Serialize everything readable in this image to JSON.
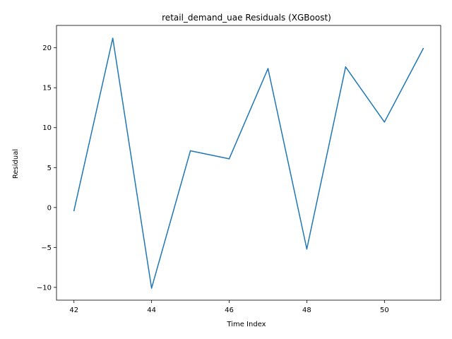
{
  "chart_data": {
    "type": "line",
    "title": "retail_demand_uae Residuals (XGBoost)",
    "xlabel": "Time Index",
    "ylabel": "Residual",
    "xlim": [
      41.55,
      51.45
    ],
    "ylim": [
      -11.6,
      22.8
    ],
    "xticks": [
      42,
      44,
      46,
      48,
      50
    ],
    "yticks": [
      -10,
      -5,
      0,
      5,
      10,
      15,
      20
    ],
    "grid": false,
    "series": [
      {
        "color": "#1f77b4",
        "x": [
          42,
          43,
          44,
          45,
          46,
          47,
          48,
          49,
          50,
          51
        ],
        "y": [
          -0.4,
          21.2,
          -10.1,
          7.1,
          6.1,
          17.4,
          -5.2,
          17.6,
          10.7,
          19.9
        ]
      }
    ]
  }
}
